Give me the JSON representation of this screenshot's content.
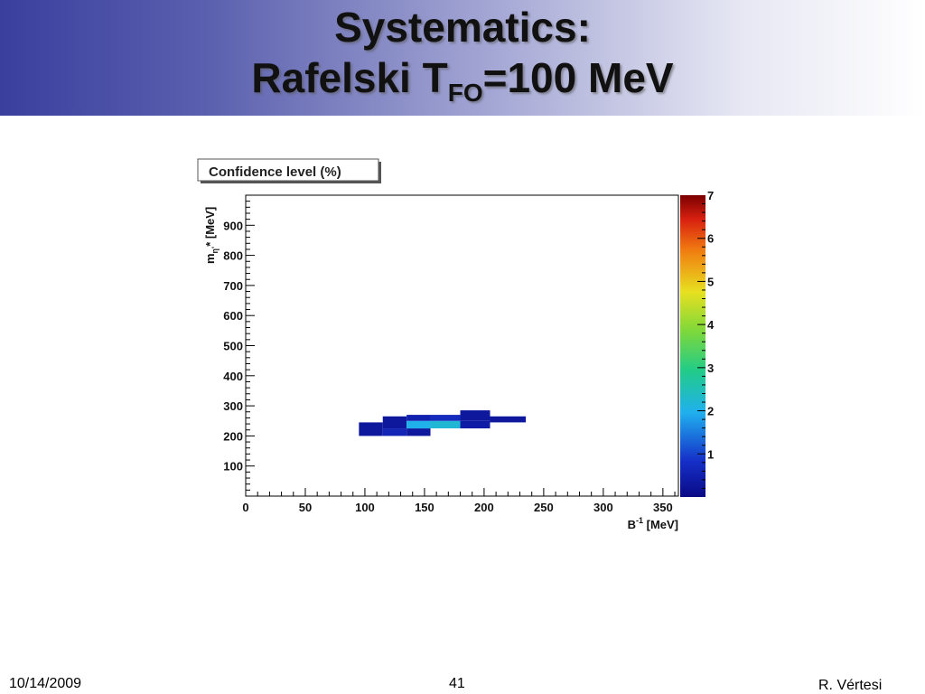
{
  "slide": {
    "title_line1": "Systematics:",
    "title_line2_prefix": "Rafelski T",
    "title_line2_sub": "FO",
    "title_line2_suffix": "=100 MeV",
    "footer_date": "10/14/2009",
    "footer_page": "41",
    "footer_author": "R. Vértesi"
  },
  "chart_data": {
    "type": "heatmap",
    "title": "Confidence level (%)",
    "xlabel_main": "B",
    "xlabel_sup": "-1",
    "xlabel_unit": " [MeV]",
    "ylabel_prefix": "m",
    "ylabel_sub": "η'",
    "ylabel_suffix": "* [MeV]",
    "xlim": [
      0,
      363
    ],
    "ylim": [
      0,
      1000
    ],
    "x_ticks": [
      0,
      50,
      100,
      150,
      200,
      250,
      300,
      350
    ],
    "y_ticks": [
      100,
      200,
      300,
      400,
      500,
      600,
      700,
      800,
      900
    ],
    "z_range": [
      0,
      7
    ],
    "z_ticks": [
      1,
      2,
      3,
      4,
      5,
      6,
      7
    ],
    "cells": [
      {
        "x0": 95,
        "x1": 115,
        "y0": 200,
        "y1": 245,
        "z": 0.3
      },
      {
        "x0": 115,
        "x1": 135,
        "y0": 200,
        "y1": 225,
        "z": 0.6
      },
      {
        "x0": 135,
        "x1": 155,
        "y0": 200,
        "y1": 225,
        "z": 0.3
      },
      {
        "x0": 115,
        "x1": 135,
        "y0": 225,
        "y1": 265,
        "z": 0.3
      },
      {
        "x0": 135,
        "x1": 155,
        "y0": 225,
        "y1": 250,
        "z": 2.0
      },
      {
        "x0": 155,
        "x1": 180,
        "y0": 225,
        "y1": 250,
        "z": 2.2
      },
      {
        "x0": 180,
        "x1": 205,
        "y0": 225,
        "y1": 250,
        "z": 0.4
      },
      {
        "x0": 135,
        "x1": 155,
        "y0": 250,
        "y1": 270,
        "z": 0.5
      },
      {
        "x0": 155,
        "x1": 180,
        "y0": 250,
        "y1": 270,
        "z": 0.7
      },
      {
        "x0": 180,
        "x1": 205,
        "y0": 250,
        "y1": 285,
        "z": 0.3
      },
      {
        "x0": 205,
        "x1": 235,
        "y0": 245,
        "y1": 265,
        "z": 0.3
      }
    ]
  }
}
